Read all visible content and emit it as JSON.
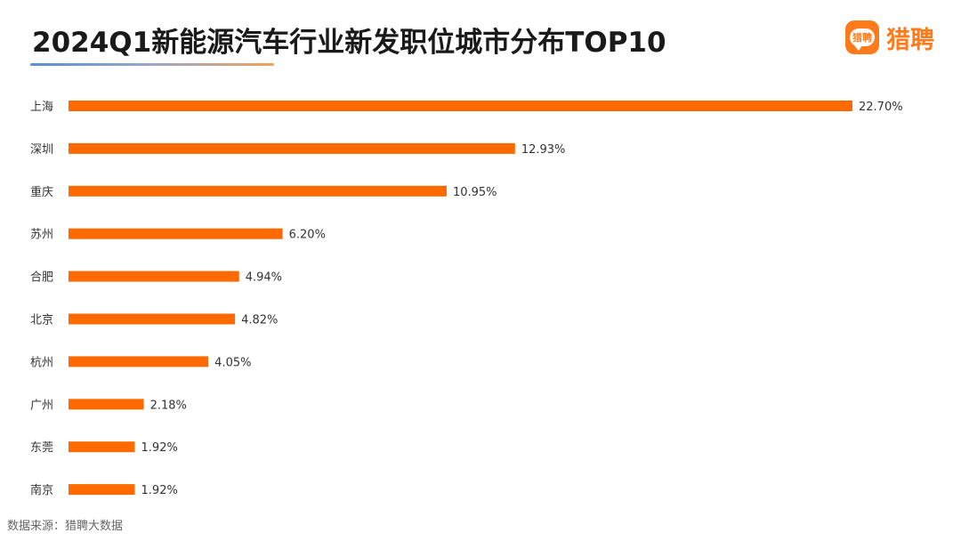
{
  "header": {
    "title": "2024Q1新能源汽车行业新发职位城市分布TOP10"
  },
  "logo": {
    "badge_text": "猎聘",
    "brand_text": "猎聘",
    "color": "#ff7a1a"
  },
  "source": {
    "text": "数据来源：猎聘大数据"
  },
  "chart_data": {
    "type": "bar",
    "orientation": "horizontal",
    "title": "2024Q1新能源汽车行业新发职位城市分布TOP10",
    "categories": [
      "上海",
      "深圳",
      "重庆",
      "苏州",
      "合肥",
      "北京",
      "杭州",
      "广州",
      "东莞",
      "南京"
    ],
    "values": [
      22.7,
      12.93,
      10.95,
      6.2,
      4.94,
      4.82,
      4.05,
      2.18,
      1.92,
      1.92
    ],
    "value_labels": [
      "22.70%",
      "12.93%",
      "10.95%",
      "6.20%",
      "4.94%",
      "4.82%",
      "4.05%",
      "2.18%",
      "1.92%",
      "1.92%"
    ],
    "xlim": [
      0,
      22.7
    ],
    "bar_color": "#ff6a00",
    "grid": false,
    "legend": "none"
  }
}
